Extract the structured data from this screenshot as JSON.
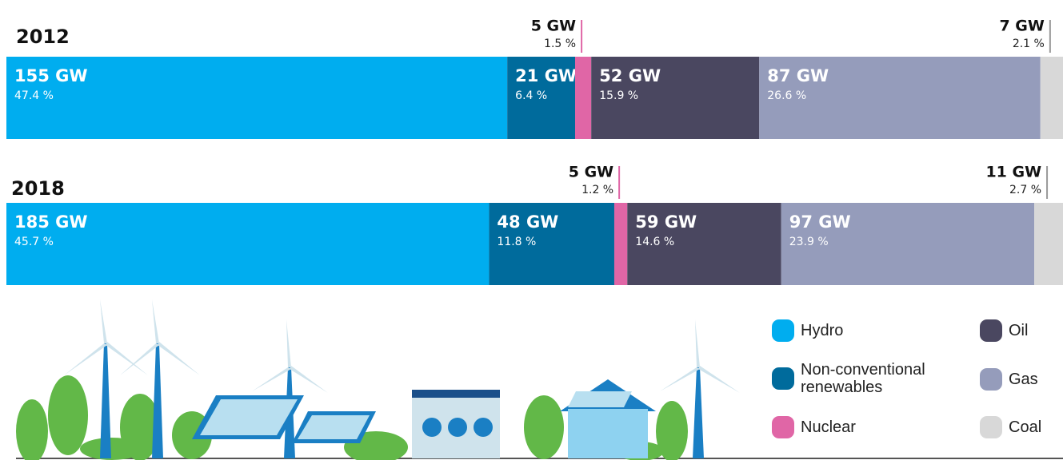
{
  "chart_data": {
    "type": "stacked-bar",
    "categories": [
      "2012",
      "2018"
    ],
    "series": [
      {
        "name": "Hydro",
        "color": "#00adef",
        "values": [
          155,
          185
        ],
        "value_labels": [
          "155 GW",
          "185 GW"
        ],
        "shares": [
          47.4,
          45.7
        ],
        "share_labels": [
          "47.4 %",
          "45.7 %"
        ]
      },
      {
        "name": "Non-conventional renewables",
        "color": "#006b9c",
        "values": [
          21,
          48
        ],
        "value_labels": [
          "21 GW",
          "48 GW"
        ],
        "shares": [
          6.4,
          11.8
        ],
        "share_labels": [
          "6.4 %",
          "11.8 %"
        ]
      },
      {
        "name": "Nuclear",
        "color": "#e066a6",
        "values": [
          5,
          5
        ],
        "value_labels": [
          "5 GW",
          "5 GW"
        ],
        "shares": [
          1.5,
          1.2
        ],
        "share_labels": [
          "1.5 %",
          "1.2 %"
        ]
      },
      {
        "name": "Oil",
        "color": "#4a4760",
        "values": [
          52,
          59
        ],
        "value_labels": [
          "52 GW",
          "59 GW"
        ],
        "shares": [
          15.9,
          14.6
        ],
        "share_labels": [
          "15.9 %",
          "14.6 %"
        ]
      },
      {
        "name": "Gas",
        "color": "#959cbb",
        "values": [
          87,
          97
        ],
        "value_labels": [
          "87 GW",
          "97 GW"
        ],
        "shares": [
          26.6,
          23.9
        ],
        "share_labels": [
          "26.6 %",
          "23.9 %"
        ]
      },
      {
        "name": "Coal",
        "color": "#d8d8d8",
        "values": [
          7,
          11
        ],
        "value_labels": [
          "7 GW",
          "11 GW"
        ],
        "shares": [
          2.1,
          2.7
        ],
        "share_labels": [
          "2.1 %",
          "2.7 %"
        ]
      }
    ]
  }
}
